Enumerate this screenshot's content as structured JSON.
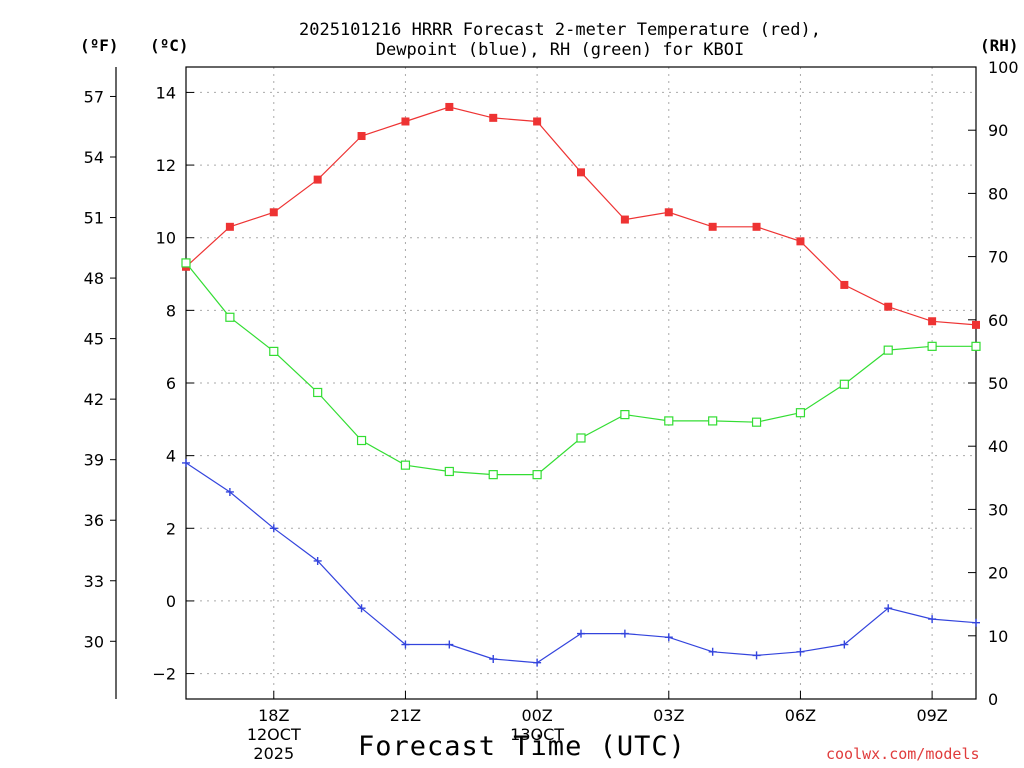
{
  "chart_data": {
    "type": "line",
    "title_line1": "2025101216 HRRR Forecast 2-meter Temperature (red),",
    "title_line2": "Dewpoint (blue), RH (green) for KBOI",
    "xlabel": "Forecast Time (UTC)",
    "credit": "coolwx.com/models",
    "unit_f": "(ºF)",
    "unit_c": "(ºC)",
    "unit_rh": "(RH)",
    "x": [
      16,
      17,
      18,
      19,
      20,
      21,
      22,
      23,
      24,
      25,
      26,
      27,
      28,
      29,
      30,
      31,
      32,
      33,
      34
    ],
    "xlim": [
      16,
      34
    ],
    "x_ticks": [
      {
        "x": 18,
        "lines": [
          "18Z",
          "12OCT",
          "2025"
        ]
      },
      {
        "x": 21,
        "lines": [
          "21Z"
        ]
      },
      {
        "x": 24,
        "lines": [
          "00Z",
          "13OCT"
        ]
      },
      {
        "x": 27,
        "lines": [
          "03Z"
        ]
      },
      {
        "x": 30,
        "lines": [
          "06Z"
        ]
      },
      {
        "x": 33,
        "lines": [
          "09Z"
        ]
      }
    ],
    "ylim_c": [
      -2.7,
      14.7
    ],
    "y_ticks_c": [
      -2,
      0,
      2,
      4,
      6,
      8,
      10,
      12,
      14
    ],
    "y_ticks_c_labels": [
      "−2",
      "0",
      "2",
      "4",
      "6",
      "8",
      "10",
      "12",
      "14"
    ],
    "y_ticks_f": [
      30,
      33,
      36,
      39,
      42,
      45,
      48,
      51,
      54,
      57
    ],
    "ylim_rh": [
      0,
      100
    ],
    "y_ticks_rh": [
      0,
      10,
      20,
      30,
      40,
      50,
      60,
      70,
      80,
      90,
      100
    ],
    "series": [
      {
        "name": "Temperature",
        "axis": "c",
        "color": "#ee3333",
        "marker": "filled-square",
        "values": [
          9.2,
          10.3,
          10.7,
          11.6,
          12.8,
          13.2,
          13.6,
          13.3,
          13.2,
          11.8,
          10.5,
          10.7,
          10.3,
          10.3,
          9.9,
          8.7,
          8.1,
          7.7,
          7.6
        ]
      },
      {
        "name": "Dewpoint",
        "axis": "c",
        "color": "#3344dd",
        "marker": "plus",
        "values": [
          3.8,
          3.0,
          2.0,
          1.1,
          -0.2,
          -1.2,
          -1.2,
          -1.6,
          -1.7,
          -0.9,
          -0.9,
          -1.0,
          -1.4,
          -1.5,
          -1.4,
          -1.2,
          -0.2,
          -0.5,
          -0.6
        ]
      },
      {
        "name": "RH",
        "axis": "rh",
        "color": "#33dd33",
        "marker": "open-square",
        "values": [
          69,
          60.4,
          55,
          48.5,
          40.9,
          37,
          36,
          35.5,
          35.5,
          41.3,
          45,
          44,
          44,
          43.8,
          45.3,
          49.8,
          55.2,
          55.8,
          55.8
        ]
      }
    ]
  }
}
